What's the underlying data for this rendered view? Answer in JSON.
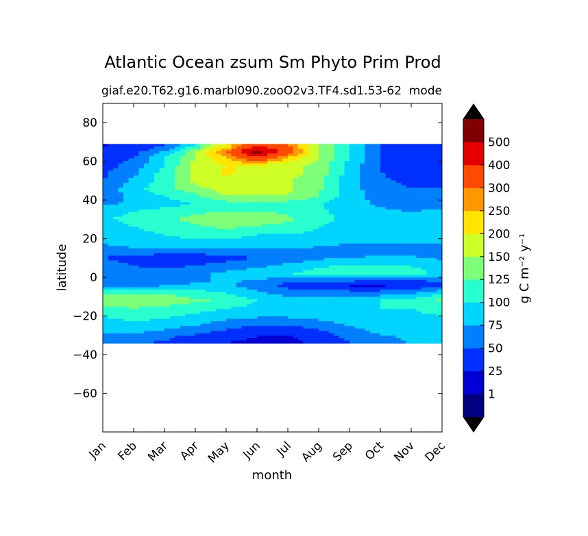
{
  "chart_data": {
    "type": "heatmap",
    "title": "Atlantic Ocean zsum Sm Phyto Prim Prod",
    "subtitle_left": "giaf.e20.T62.g16.marbl090.zooO2v3.TF4.sd1.53-62",
    "subtitle_right": "mode",
    "xlabel": "month",
    "ylabel": "latitude",
    "x_categories": [
      "Jan",
      "Feb",
      "Mar",
      "Apr",
      "May",
      "Jun",
      "Jul",
      "Aug",
      "Sep",
      "Oct",
      "Nov",
      "Dec"
    ],
    "ylim": [
      -80,
      90
    ],
    "y_ticks": [
      "80",
      "60",
      "40",
      "20",
      "0",
      "−20",
      "−40",
      "−60"
    ],
    "y_tick_values": [
      80,
      60,
      40,
      20,
      0,
      -20,
      -40,
      -60
    ],
    "data_lat_range": [
      -34,
      69
    ],
    "colorbar": {
      "label": "g C m⁻² y⁻¹",
      "levels": [
        0,
        1,
        25,
        50,
        75,
        100,
        125,
        150,
        200,
        250,
        300,
        400,
        500,
        600
      ],
      "tick_labels": [
        "1",
        "25",
        "50",
        "75",
        "100",
        "125",
        "150",
        "200",
        "250",
        "300",
        "400",
        "500"
      ],
      "colors": [
        "#000080",
        "#0000d5",
        "#0030ff",
        "#0080ff",
        "#00d4ff",
        "#29ffce",
        "#7dff7a",
        "#ceff29",
        "#ffe500",
        "#ff9800",
        "#ff4a00",
        "#e50000",
        "#800000"
      ],
      "under_color": "#000000",
      "over_color": "#000000"
    },
    "rows": [
      {
        "lat": 68,
        "values": [
          25,
          25,
          50,
          100,
          200,
          400,
          300,
          150,
          100,
          50,
          25,
          25
        ]
      },
      {
        "lat": 65,
        "values": [
          25,
          40,
          75,
          150,
          300,
          550,
          350,
          150,
          100,
          50,
          25,
          25
        ]
      },
      {
        "lat": 62,
        "values": [
          30,
          50,
          100,
          150,
          250,
          400,
          250,
          150,
          100,
          50,
          30,
          30
        ]
      },
      {
        "lat": 58,
        "values": [
          40,
          60,
          100,
          160,
          200,
          200,
          160,
          140,
          90,
          50,
          40,
          40
        ]
      },
      {
        "lat": 54,
        "values": [
          45,
          70,
          110,
          160,
          210,
          170,
          160,
          140,
          90,
          50,
          40,
          40
        ]
      },
      {
        "lat": 50,
        "values": [
          50,
          80,
          110,
          160,
          180,
          160,
          155,
          130,
          85,
          55,
          45,
          45
        ]
      },
      {
        "lat": 46,
        "values": [
          60,
          90,
          120,
          140,
          160,
          160,
          155,
          130,
          85,
          60,
          50,
          50
        ]
      },
      {
        "lat": 42,
        "values": [
          60,
          80,
          100,
          120,
          150,
          150,
          150,
          125,
          85,
          65,
          55,
          55
        ]
      },
      {
        "lat": 38,
        "values": [
          70,
          80,
          90,
          100,
          110,
          115,
          110,
          100,
          85,
          70,
          60,
          60
        ]
      },
      {
        "lat": 34,
        "values": [
          90,
          100,
          110,
          120,
          125,
          125,
          120,
          105,
          90,
          80,
          75,
          80
        ]
      },
      {
        "lat": 30,
        "values": [
          95,
          110,
          120,
          135,
          150,
          155,
          130,
          110,
          90,
          80,
          78,
          80
        ]
      },
      {
        "lat": 26,
        "values": [
          85,
          100,
          110,
          120,
          130,
          120,
          110,
          100,
          85,
          80,
          76,
          78
        ]
      },
      {
        "lat": 22,
        "values": [
          80,
          90,
          100,
          110,
          110,
          100,
          100,
          95,
          80,
          78,
          76,
          77
        ]
      },
      {
        "lat": 18,
        "values": [
          80,
          85,
          90,
          90,
          90,
          88,
          85,
          82,
          78,
          77,
          76,
          76
        ]
      },
      {
        "lat": 14,
        "values": [
          60,
          70,
          70,
          70,
          70,
          70,
          70,
          70,
          60,
          60,
          60,
          60
        ]
      },
      {
        "lat": 10,
        "values": [
          50,
          40,
          30,
          30,
          40,
          50,
          60,
          70,
          75,
          80,
          80,
          70
        ]
      },
      {
        "lat": 6,
        "values": [
          60,
          50,
          45,
          50,
          60,
          70,
          80,
          95,
          105,
          105,
          100,
          90
        ]
      },
      {
        "lat": 2,
        "values": [
          70,
          60,
          60,
          70,
          80,
          90,
          100,
          110,
          110,
          110,
          105,
          100
        ]
      },
      {
        "lat": -2,
        "values": [
          55,
          50,
          60,
          70,
          80,
          70,
          60,
          55,
          50,
          45,
          45,
          55
        ]
      },
      {
        "lat": -4,
        "values": [
          60,
          60,
          70,
          80,
          80,
          60,
          40,
          30,
          20,
          20,
          20,
          40
        ]
      },
      {
        "lat": -8,
        "values": [
          120,
          120,
          120,
          110,
          100,
          80,
          60,
          60,
          60,
          60,
          70,
          90
        ]
      },
      {
        "lat": -12,
        "values": [
          140,
          145,
          140,
          130,
          120,
          100,
          90,
          90,
          95,
          100,
          110,
          130
        ]
      },
      {
        "lat": -16,
        "values": [
          120,
          125,
          120,
          110,
          100,
          95,
          90,
          95,
          100,
          100,
          100,
          110
        ]
      },
      {
        "lat": -20,
        "values": [
          100,
          110,
          105,
          95,
          85,
          80,
          80,
          85,
          90,
          90,
          95,
          100
        ]
      },
      {
        "lat": -24,
        "values": [
          90,
          95,
          90,
          80,
          65,
          55,
          55,
          65,
          80,
          90,
          95,
          100
        ]
      },
      {
        "lat": -28,
        "values": [
          80,
          80,
          70,
          60,
          45,
          30,
          30,
          45,
          65,
          80,
          90,
          95
        ]
      },
      {
        "lat": -31,
        "values": [
          70,
          65,
          55,
          40,
          30,
          25,
          22,
          35,
          55,
          70,
          80,
          85
        ]
      },
      {
        "lat": -34,
        "values": [
          60,
          55,
          45,
          35,
          25,
          20,
          20,
          30,
          50,
          65,
          75,
          80
        ]
      }
    ]
  }
}
